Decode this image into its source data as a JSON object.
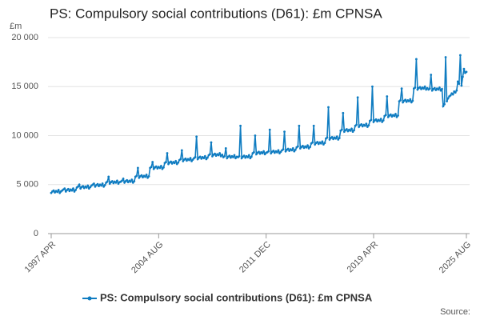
{
  "chart_data": {
    "type": "line",
    "title": "PS: Compulsory social contributions (D61): £m CPNSA",
    "y_label": "£m",
    "source": "Source:",
    "categories": [
      "1997 APR",
      null,
      null,
      null,
      null,
      null,
      null,
      null,
      null,
      null,
      null,
      null,
      null,
      null,
      null,
      null,
      null,
      null,
      null,
      null,
      null,
      null,
      null,
      null,
      null,
      null,
      null,
      null,
      null,
      null,
      null,
      null,
      null,
      null,
      null,
      null,
      null,
      null,
      null,
      null,
      null,
      null,
      null,
      null,
      null,
      null,
      null,
      null,
      null,
      null,
      null,
      null,
      null,
      null,
      null,
      null,
      null,
      null,
      null,
      null,
      null,
      null,
      null,
      null,
      null,
      null,
      null,
      null,
      null,
      null,
      null,
      null,
      null,
      null,
      null,
      null,
      null,
      null,
      null,
      null,
      null,
      null,
      null,
      null,
      null,
      null,
      null,
      null,
      "2004 AUG",
      null,
      null,
      null,
      null,
      null,
      null,
      null,
      null,
      null,
      null,
      null,
      null,
      null,
      null,
      null,
      null,
      null,
      null,
      null,
      null,
      null,
      null,
      null,
      null,
      null,
      null,
      null,
      null,
      null,
      null,
      null,
      null,
      null,
      null,
      null,
      null,
      null,
      null,
      null,
      null,
      null,
      null,
      null,
      null,
      null,
      null,
      null,
      null,
      null,
      null,
      null,
      null,
      null,
      null,
      null,
      null,
      null,
      null,
      null,
      null,
      null,
      null,
      null,
      null,
      null,
      null,
      null,
      null,
      null,
      null,
      null,
      null,
      null,
      null,
      null,
      null,
      null,
      null,
      null,
      null,
      null,
      null,
      null,
      null,
      null,
      null,
      null,
      "2011 DEC",
      null,
      null,
      null,
      null,
      null,
      null,
      null,
      null,
      null,
      null,
      null,
      null,
      null,
      null,
      null,
      null,
      null,
      null,
      null,
      null,
      null,
      null,
      null,
      null,
      null,
      null,
      null,
      null,
      null,
      null,
      null,
      null,
      null,
      null,
      null,
      null,
      null,
      null,
      null,
      null,
      null,
      null,
      null,
      null,
      null,
      null,
      null,
      null,
      null,
      null,
      null,
      null,
      null,
      null,
      null,
      null,
      null,
      null,
      null,
      null,
      null,
      null,
      null,
      null,
      null,
      null,
      null,
      null,
      null,
      null,
      null,
      null,
      null,
      null,
      null,
      null,
      null,
      null,
      null,
      null,
      null,
      null,
      null,
      null,
      null,
      null,
      null,
      "2019 APR",
      null,
      null,
      null,
      null,
      null,
      null,
      null,
      null,
      null,
      null,
      null,
      null,
      null,
      null,
      null,
      null,
      null,
      null,
      null,
      null,
      null,
      null,
      null,
      null,
      null,
      null,
      null,
      null,
      null,
      null,
      null,
      null,
      null,
      null,
      null,
      null,
      null,
      null,
      null,
      null,
      null,
      null,
      null,
      null,
      null,
      null,
      null,
      null,
      null,
      null,
      null,
      null,
      null,
      null,
      null,
      null,
      null,
      null,
      null,
      null,
      null,
      null,
      null,
      null,
      null,
      null,
      null,
      null,
      null,
      null,
      null,
      null,
      null,
      null,
      null,
      "2025 AUG"
    ],
    "series": [
      {
        "name": "PS: Compulsory social contributions (D61): £m CPNSA",
        "color": "#0f7cc1",
        "values": [
          4150,
          4300,
          4400,
          4200,
          4350,
          4250,
          4450,
          4150,
          4300,
          4400,
          4500,
          4600,
          4300,
          4450,
          4550,
          4350,
          4500,
          4400,
          4600,
          4300,
          4450,
          4700,
          4800,
          5000,
          4600,
          4750,
          4850,
          4650,
          4800,
          4700,
          4900,
          4600,
          4750,
          4900,
          5000,
          5100,
          4800,
          4950,
          5050,
          4850,
          5000,
          4900,
          5100,
          4800,
          4950,
          5200,
          5300,
          5800,
          5100,
          5250,
          5350,
          5150,
          5300,
          5200,
          5400,
          5100,
          5250,
          5300,
          5400,
          5600,
          5200,
          5350,
          5450,
          5250,
          5400,
          5300,
          5500,
          5200,
          5350,
          5800,
          5900,
          6700,
          5700,
          5850,
          5950,
          5750,
          5900,
          5800,
          6000,
          5700,
          5850,
          6700,
          6800,
          7300,
          6600,
          6750,
          6850,
          6650,
          6800,
          6700,
          6900,
          6600,
          6750,
          7200,
          7300,
          8200,
          7100,
          7250,
          7350,
          7150,
          7300,
          7200,
          7400,
          7100,
          7250,
          7500,
          7600,
          8500,
          7400,
          7550,
          7650,
          7450,
          7600,
          7500,
          7700,
          7400,
          7550,
          7700,
          7800,
          9900,
          7600,
          7750,
          7850,
          7650,
          7800,
          7700,
          7900,
          7600,
          7750,
          8000,
          8100,
          9300,
          7900,
          8050,
          8150,
          7950,
          8100,
          8000,
          8200,
          7900,
          8050,
          7800,
          7900,
          8700,
          7700,
          7850,
          7950,
          7750,
          7900,
          7800,
          8000,
          7700,
          7850,
          7800,
          7900,
          11000,
          7700,
          7850,
          7950,
          7750,
          7900,
          7800,
          8000,
          7700,
          7850,
          8200,
          8300,
          10000,
          8100,
          8250,
          8350,
          8150,
          8300,
          8200,
          8400,
          8100,
          8250,
          8300,
          8400,
          10600,
          8200,
          8350,
          8450,
          8250,
          8400,
          8300,
          8500,
          8200,
          8350,
          8500,
          8600,
          10400,
          8400,
          8550,
          8650,
          8450,
          8600,
          8500,
          8700,
          8400,
          8550,
          8800,
          8900,
          11000,
          8700,
          8850,
          8950,
          8750,
          8900,
          8800,
          9000,
          8700,
          8850,
          9200,
          9300,
          11000,
          9100,
          9250,
          9350,
          9150,
          9300,
          9200,
          9400,
          9100,
          9250,
          9700,
          9800,
          12900,
          9600,
          9750,
          9850,
          9650,
          9800,
          9700,
          9900,
          9600,
          9750,
          10500,
          10600,
          12300,
          10400,
          10550,
          10650,
          10450,
          10600,
          10500,
          10700,
          10400,
          10550,
          11000,
          11100,
          13900,
          10900,
          11050,
          11150,
          10950,
          11100,
          11000,
          11200,
          10900,
          11050,
          11500,
          11600,
          15000,
          11400,
          11550,
          11650,
          11450,
          11600,
          11500,
          11700,
          11400,
          11550,
          12000,
          12100,
          14000,
          11900,
          12050,
          12150,
          11950,
          12100,
          12000,
          12200,
          11900,
          12050,
          13500,
          13600,
          14800,
          13400,
          13550,
          13650,
          13450,
          13600,
          13500,
          13700,
          13400,
          13550,
          14800,
          14900,
          17800,
          14700,
          14850,
          14950,
          14750,
          14900,
          14800,
          15000,
          14700,
          14850,
          14700,
          14800,
          16200,
          14600,
          14750,
          14850,
          14650,
          14800,
          14700,
          14900,
          14600,
          14750,
          13000,
          13200,
          18000,
          13500,
          13800,
          14000,
          14100,
          14300,
          14200,
          14500,
          14400,
          14600,
          15500,
          15300,
          18200,
          15100,
          16000,
          16800,
          16400,
          16500
        ]
      }
    ],
    "ylim": [
      0,
      20000
    ],
    "yticks": [
      0,
      {
        "value": 5000,
        "label": "5 000"
      },
      {
        "value": 10000,
        "label": "10 000"
      },
      {
        "value": 15000,
        "label": "15 000"
      },
      {
        "value": 20000,
        "label": "20 000"
      }
    ],
    "grid": true
  }
}
